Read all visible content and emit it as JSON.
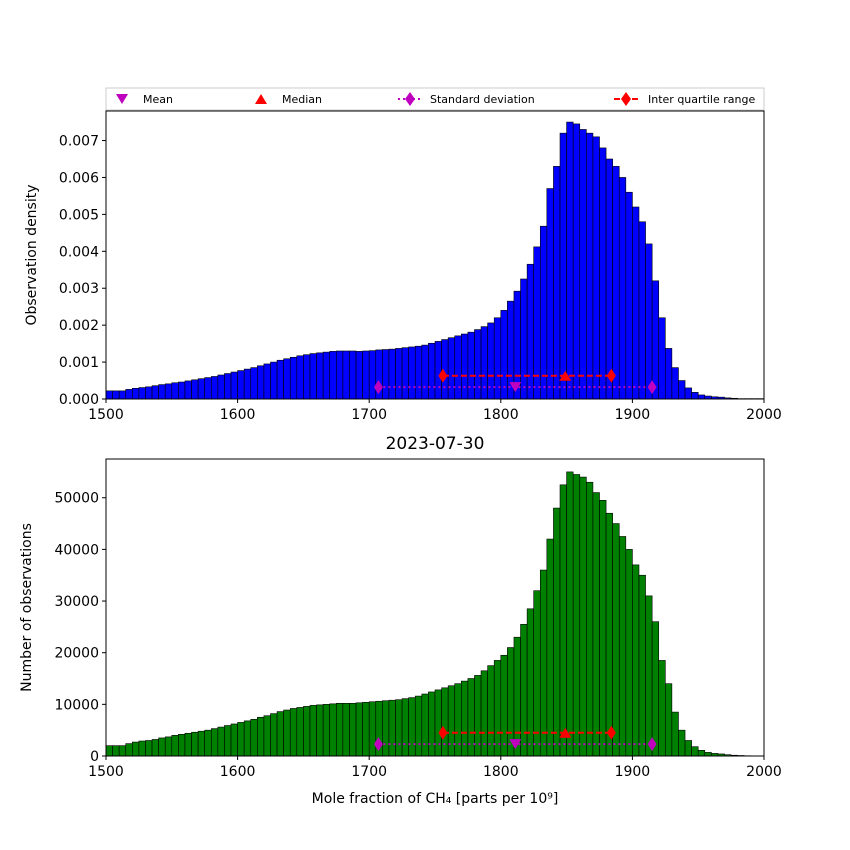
{
  "legend": [
    {
      "label": "Mean",
      "marker": "triangle-down",
      "color": "#bf00bf"
    },
    {
      "label": "Median",
      "marker": "triangle-up",
      "color": "#ff0000"
    },
    {
      "label": "Standard deviation",
      "marker": "diamond",
      "color": "#bf00bf",
      "line": "dotted"
    },
    {
      "label": "Inter quartile range",
      "marker": "diamond",
      "color": "#ff0000",
      "line": "dashed"
    }
  ],
  "chart_data": [
    {
      "type": "bar",
      "title": "",
      "xlabel": "",
      "ylabel": "Observation density",
      "xlim": [
        1500,
        2000
      ],
      "ylim": [
        0,
        0.0078
      ],
      "xticks": [
        "1500",
        "1600",
        "1700",
        "1800",
        "1900",
        "2000"
      ],
      "yticks": [
        "0.000",
        "0.001",
        "0.002",
        "0.003",
        "0.004",
        "0.005",
        "0.006",
        "0.007"
      ],
      "bar_color": "#0000ff",
      "bin_start": 1500,
      "bin_width": 5,
      "values": [
        0.00022,
        0.00022,
        0.00022,
        0.00026,
        0.00029,
        0.00031,
        0.00033,
        0.00036,
        0.00039,
        0.00041,
        0.00044,
        0.00046,
        0.00049,
        0.00052,
        0.00055,
        0.00058,
        0.00061,
        0.00065,
        0.00069,
        0.00073,
        0.00077,
        0.00081,
        0.00085,
        0.0009,
        0.00095,
        0.001,
        0.00105,
        0.00109,
        0.00113,
        0.00117,
        0.0012,
        0.00123,
        0.00125,
        0.00127,
        0.00129,
        0.0013,
        0.0013,
        0.0013,
        0.00129,
        0.0013,
        0.00131,
        0.00133,
        0.00134,
        0.00135,
        0.00137,
        0.00139,
        0.00141,
        0.00143,
        0.00146,
        0.00151,
        0.00156,
        0.00161,
        0.00166,
        0.00171,
        0.00176,
        0.00181,
        0.00188,
        0.00196,
        0.00206,
        0.0022,
        0.0024,
        0.00265,
        0.00292,
        0.00325,
        0.00365,
        0.00412,
        0.00468,
        0.0057,
        0.0063,
        0.0072,
        0.0075,
        0.00745,
        0.0073,
        0.0072,
        0.0071,
        0.0068,
        0.0065,
        0.0063,
        0.006,
        0.0056,
        0.0052,
        0.0048,
        0.0042,
        0.0032,
        0.0022,
        0.00137,
        0.00085,
        0.0005,
        0.0003,
        0.00018,
        0.00011,
        8e-05,
        6e-05,
        5e-05,
        3e-05,
        2e-05,
        1e-05,
        1e-05,
        1e-05,
        1e-05
      ],
      "stats": {
        "mean": 1811,
        "median": 1849,
        "std_range": [
          1707,
          1915
        ],
        "iqr_range": [
          1756,
          1884
        ],
        "mean_y": 0.00032,
        "median_y": 0.00063,
        "std_y": 0.00032,
        "iqr_y": 0.00063
      }
    },
    {
      "type": "bar",
      "title": "2023-07-30",
      "xlabel": "Mole fraction of CH₄ [parts per 10⁹]",
      "ylabel": "Number of observations",
      "xlim": [
        1500,
        2000
      ],
      "ylim": [
        0,
        57500
      ],
      "xticks": [
        "1500",
        "1600",
        "1700",
        "1800",
        "1900",
        "2000"
      ],
      "yticks": [
        "0",
        "10000",
        "20000",
        "30000",
        "40000",
        "50000"
      ],
      "bar_color": "#008000",
      "bin_start": 1500,
      "bin_width": 5,
      "values": [
        2000,
        2000,
        2000,
        2400,
        2700,
        2900,
        3000,
        3200,
        3500,
        3700,
        4000,
        4200,
        4400,
        4600,
        4800,
        5000,
        5300,
        5600,
        5900,
        6200,
        6500,
        6800,
        7100,
        7500,
        7800,
        8200,
        8600,
        8900,
        9200,
        9400,
        9600,
        9800,
        9900,
        10000,
        10100,
        10200,
        10200,
        10200,
        10300,
        10400,
        10500,
        10600,
        10700,
        10800,
        10900,
        11100,
        11300,
        11600,
        12000,
        12400,
        12800,
        13200,
        13600,
        14000,
        14500,
        15000,
        15600,
        16500,
        17500,
        18500,
        19500,
        21000,
        23000,
        25500,
        28500,
        32000,
        36000,
        42000,
        48000,
        52500,
        55000,
        54500,
        54000,
        53000,
        51000,
        49500,
        47000,
        45000,
        42500,
        40000,
        37000,
        35000,
        31000,
        26000,
        18500,
        14000,
        8500,
        5000,
        3000,
        1800,
        1100,
        700,
        500,
        400,
        250,
        150,
        100,
        50,
        30,
        20
      ],
      "stats": {
        "mean": 1811,
        "median": 1849,
        "std_range": [
          1707,
          1915
        ],
        "iqr_range": [
          1756,
          1884
        ],
        "mean_y": 2300,
        "median_y": 4500,
        "std_y": 2300,
        "iqr_y": 4500
      }
    }
  ]
}
